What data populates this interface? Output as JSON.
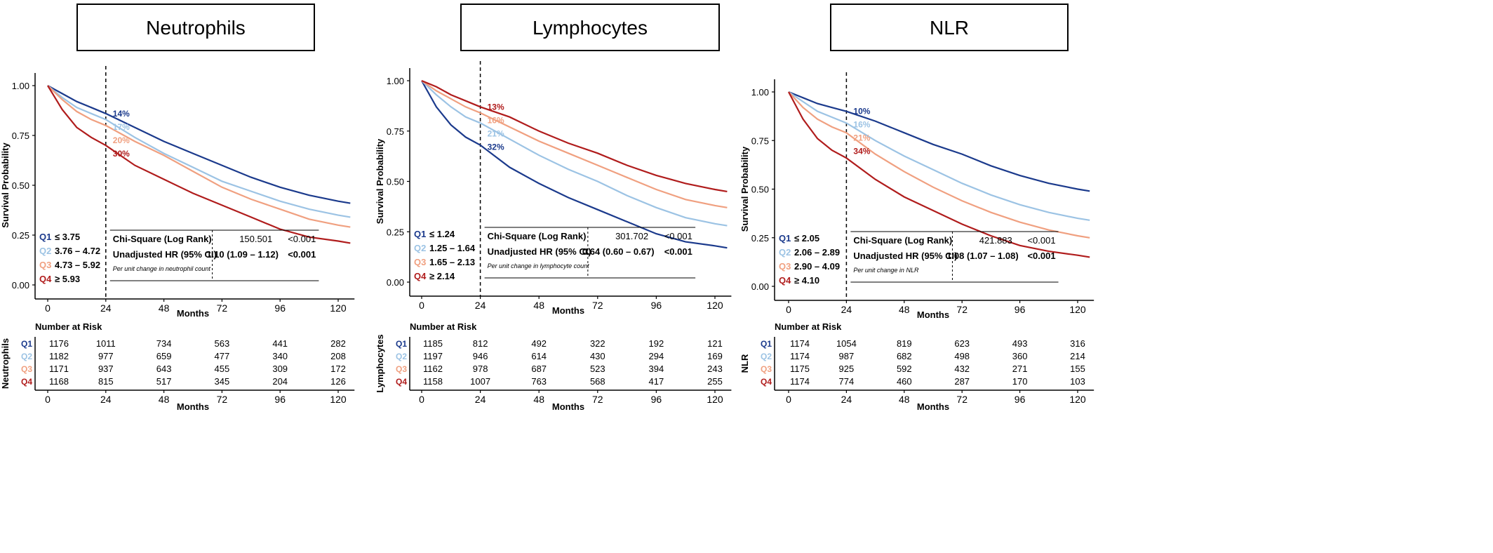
{
  "colors": {
    "Q1": "#1b3a8c",
    "Q2": "#9cc3e4",
    "Q3": "#f0a080",
    "Q4": "#b01c1c",
    "axis": "#000000"
  },
  "chart_data": [
    {
      "type": "line",
      "title": "Neutrophils",
      "xlabel": "Months",
      "ylabel": "Survival Probability",
      "xlim": [
        0,
        125
      ],
      "ylim": [
        0,
        1.0
      ],
      "x_ticks": [
        "0",
        "24",
        "48",
        "72",
        "96",
        "120"
      ],
      "y_ticks": [
        "0.00",
        "0.25",
        "0.50",
        "0.75",
        "1.00"
      ],
      "grid": false,
      "dashed_vline_x": 24,
      "series": [
        {
          "name": "Q1",
          "key": "Q1",
          "x": [
            0,
            6,
            12,
            18,
            24,
            36,
            48,
            60,
            72,
            84,
            96,
            108,
            120,
            125
          ],
          "y": [
            1.0,
            0.96,
            0.92,
            0.89,
            0.86,
            0.79,
            0.72,
            0.66,
            0.6,
            0.54,
            0.49,
            0.45,
            0.42,
            0.41
          ]
        },
        {
          "name": "Q2",
          "key": "Q2",
          "x": [
            0,
            6,
            12,
            18,
            24,
            36,
            48,
            60,
            72,
            84,
            96,
            108,
            120,
            125
          ],
          "y": [
            1.0,
            0.94,
            0.89,
            0.86,
            0.83,
            0.74,
            0.66,
            0.59,
            0.52,
            0.47,
            0.42,
            0.38,
            0.35,
            0.34
          ]
        },
        {
          "name": "Q3",
          "key": "Q3",
          "x": [
            0,
            6,
            12,
            18,
            24,
            36,
            48,
            60,
            72,
            84,
            96,
            108,
            120,
            125
          ],
          "y": [
            1.0,
            0.93,
            0.87,
            0.83,
            0.8,
            0.72,
            0.65,
            0.57,
            0.49,
            0.43,
            0.38,
            0.33,
            0.3,
            0.29
          ]
        },
        {
          "name": "Q4",
          "key": "Q4",
          "x": [
            0,
            6,
            12,
            18,
            24,
            36,
            48,
            60,
            72,
            84,
            96,
            108,
            120,
            125
          ],
          "y": [
            1.0,
            0.88,
            0.79,
            0.74,
            0.7,
            0.6,
            0.53,
            0.46,
            0.4,
            0.34,
            0.28,
            0.24,
            0.22,
            0.21
          ]
        }
      ],
      "annotations": [
        "14%",
        "17%",
        "20%",
        "30%"
      ],
      "legend": [
        "≤ 3.75",
        "3.76 – 4.72",
        "4.73 – 5.92",
        "≥ 5.93"
      ],
      "stats": {
        "chi_label": "Chi-Square (Log Rank)",
        "chi_value": "150.501",
        "chi_p": "<0.001",
        "hr_label": "Unadjusted HR (95% CI)",
        "hr_value": "1.10 (1.09 – 1.12)",
        "hr_p": "<0.001",
        "note": "Per unit change in neutrophil count"
      },
      "risk_label": "Neutrophils",
      "risk_table": [
        [
          "1176",
          "1011",
          "734",
          "563",
          "441",
          "282"
        ],
        [
          "1182",
          "977",
          "659",
          "477",
          "340",
          "208"
        ],
        [
          "1171",
          "937",
          "643",
          "455",
          "309",
          "172"
        ],
        [
          "1168",
          "815",
          "517",
          "345",
          "204",
          "126"
        ]
      ]
    },
    {
      "type": "line",
      "title": "Lymphocytes",
      "xlabel": "Months",
      "ylabel": "Survival Probability",
      "xlim": [
        0,
        125
      ],
      "ylim": [
        0,
        1.0
      ],
      "x_ticks": [
        "0",
        "24",
        "48",
        "72",
        "96",
        "120"
      ],
      "y_ticks": [
        "0.00",
        "0.25",
        "0.50",
        "0.75",
        "1.00"
      ],
      "grid": false,
      "dashed_vline_x": 24,
      "series": [
        {
          "name": "Q1",
          "key": "Q1",
          "x": [
            0,
            6,
            12,
            18,
            24,
            36,
            48,
            60,
            72,
            84,
            96,
            108,
            120,
            125
          ],
          "y": [
            1.0,
            0.87,
            0.78,
            0.72,
            0.68,
            0.57,
            0.49,
            0.42,
            0.36,
            0.3,
            0.24,
            0.2,
            0.18,
            0.17
          ]
        },
        {
          "name": "Q2",
          "key": "Q2",
          "x": [
            0,
            6,
            12,
            18,
            24,
            36,
            48,
            60,
            72,
            84,
            96,
            108,
            120,
            125
          ],
          "y": [
            1.0,
            0.93,
            0.87,
            0.82,
            0.79,
            0.71,
            0.63,
            0.56,
            0.5,
            0.43,
            0.37,
            0.32,
            0.29,
            0.28
          ]
        },
        {
          "name": "Q3",
          "key": "Q3",
          "x": [
            0,
            6,
            12,
            18,
            24,
            36,
            48,
            60,
            72,
            84,
            96,
            108,
            120,
            125
          ],
          "y": [
            1.0,
            0.95,
            0.91,
            0.87,
            0.84,
            0.77,
            0.7,
            0.64,
            0.58,
            0.52,
            0.46,
            0.41,
            0.38,
            0.37
          ]
        },
        {
          "name": "Q4",
          "key": "Q4",
          "x": [
            0,
            6,
            12,
            18,
            24,
            36,
            48,
            60,
            72,
            84,
            96,
            108,
            120,
            125
          ],
          "y": [
            1.0,
            0.97,
            0.93,
            0.9,
            0.87,
            0.82,
            0.75,
            0.69,
            0.64,
            0.58,
            0.53,
            0.49,
            0.46,
            0.45
          ]
        }
      ],
      "annotations": [
        "13%",
        "16%",
        "21%",
        "32%"
      ],
      "legend": [
        "≤ 1.24",
        "1.25 – 1.64",
        "1.65 – 2.13",
        "≥ 2.14"
      ],
      "stats": {
        "chi_label": "Chi-Square (Log Rank)",
        "chi_value": "301.702",
        "chi_p": "<0.001",
        "hr_label": "Unadjusted HR (95% CI)",
        "hr_value": "0.64 (0.60 – 0.67)",
        "hr_p": "<0.001",
        "note": "Per unit change in lymphocyte count"
      },
      "risk_label": "Lymphocytes",
      "risk_table": [
        [
          "1185",
          "812",
          "492",
          "322",
          "192",
          "121"
        ],
        [
          "1197",
          "946",
          "614",
          "430",
          "294",
          "169"
        ],
        [
          "1162",
          "978",
          "687",
          "523",
          "394",
          "243"
        ],
        [
          "1158",
          "1007",
          "763",
          "568",
          "417",
          "255"
        ]
      ]
    },
    {
      "type": "line",
      "title": "NLR",
      "xlabel": "Months",
      "ylabel": "Survival Probability",
      "xlim": [
        0,
        125
      ],
      "ylim": [
        0,
        1.0
      ],
      "x_ticks": [
        "0",
        "24",
        "48",
        "72",
        "96",
        "120"
      ],
      "y_ticks": [
        "0.00",
        "0.25",
        "0.50",
        "0.75",
        "1.00"
      ],
      "grid": false,
      "dashed_vline_x": 24,
      "series": [
        {
          "name": "Q1",
          "key": "Q1",
          "x": [
            0,
            6,
            12,
            18,
            24,
            36,
            48,
            60,
            72,
            84,
            96,
            108,
            120,
            125
          ],
          "y": [
            1.0,
            0.97,
            0.94,
            0.92,
            0.9,
            0.85,
            0.79,
            0.73,
            0.68,
            0.62,
            0.57,
            0.53,
            0.5,
            0.49
          ]
        },
        {
          "name": "Q2",
          "key": "Q2",
          "x": [
            0,
            6,
            12,
            18,
            24,
            36,
            48,
            60,
            72,
            84,
            96,
            108,
            120,
            125
          ],
          "y": [
            1.0,
            0.95,
            0.9,
            0.87,
            0.84,
            0.75,
            0.67,
            0.6,
            0.53,
            0.47,
            0.42,
            0.38,
            0.35,
            0.34
          ]
        },
        {
          "name": "Q3",
          "key": "Q3",
          "x": [
            0,
            6,
            12,
            18,
            24,
            36,
            48,
            60,
            72,
            84,
            96,
            108,
            120,
            125
          ],
          "y": [
            1.0,
            0.92,
            0.86,
            0.82,
            0.79,
            0.68,
            0.59,
            0.51,
            0.44,
            0.38,
            0.33,
            0.29,
            0.26,
            0.25
          ]
        },
        {
          "name": "Q4",
          "key": "Q4",
          "x": [
            0,
            6,
            12,
            18,
            24,
            36,
            48,
            60,
            72,
            84,
            96,
            108,
            120,
            125
          ],
          "y": [
            1.0,
            0.86,
            0.76,
            0.7,
            0.66,
            0.55,
            0.46,
            0.39,
            0.32,
            0.26,
            0.21,
            0.18,
            0.16,
            0.15
          ]
        }
      ],
      "annotations": [
        "10%",
        "16%",
        "21%",
        "34%"
      ],
      "legend": [
        "≤ 2.05",
        "2.06 – 2.89",
        "2.90 – 4.09",
        "≥ 4.10"
      ],
      "stats": {
        "chi_label": "Chi-Square (Log Rank)",
        "chi_value": "421.883",
        "chi_p": "<0.001",
        "hr_label": "Unadjusted HR (95% CI)",
        "hr_value": "1.08 (1.07 – 1.08)",
        "hr_p": "<0.001",
        "note": "Per unit change in NLR"
      },
      "risk_label": "NLR",
      "risk_table": [
        [
          "1174",
          "1054",
          "819",
          "623",
          "493",
          "316"
        ],
        [
          "1174",
          "987",
          "682",
          "498",
          "360",
          "214"
        ],
        [
          "1175",
          "925",
          "592",
          "432",
          "271",
          "155"
        ],
        [
          "1174",
          "774",
          "460",
          "287",
          "170",
          "103"
        ]
      ]
    }
  ],
  "quartile_labels": [
    "Q1",
    "Q2",
    "Q3",
    "Q4"
  ],
  "risk_title": "Number at Risk"
}
